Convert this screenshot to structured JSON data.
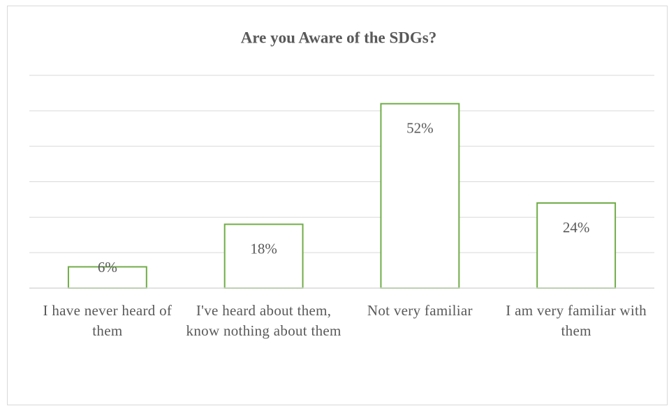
{
  "chart_data": {
    "type": "bar",
    "title": "Are you Aware of the SDGs?",
    "categories": [
      "I have never heard of them",
      "I've heard about them, know nothing about them",
      "Not very familiar",
      "I am  very familiar with them"
    ],
    "values": [
      6,
      18,
      52,
      24
    ],
    "value_labels": [
      "6%",
      "18%",
      "52%",
      "24%"
    ],
    "color": "#70ad47",
    "ylim": [
      0,
      60
    ],
    "yticks": [
      0,
      10,
      20,
      30,
      40,
      50,
      60
    ],
    "grid": true
  }
}
